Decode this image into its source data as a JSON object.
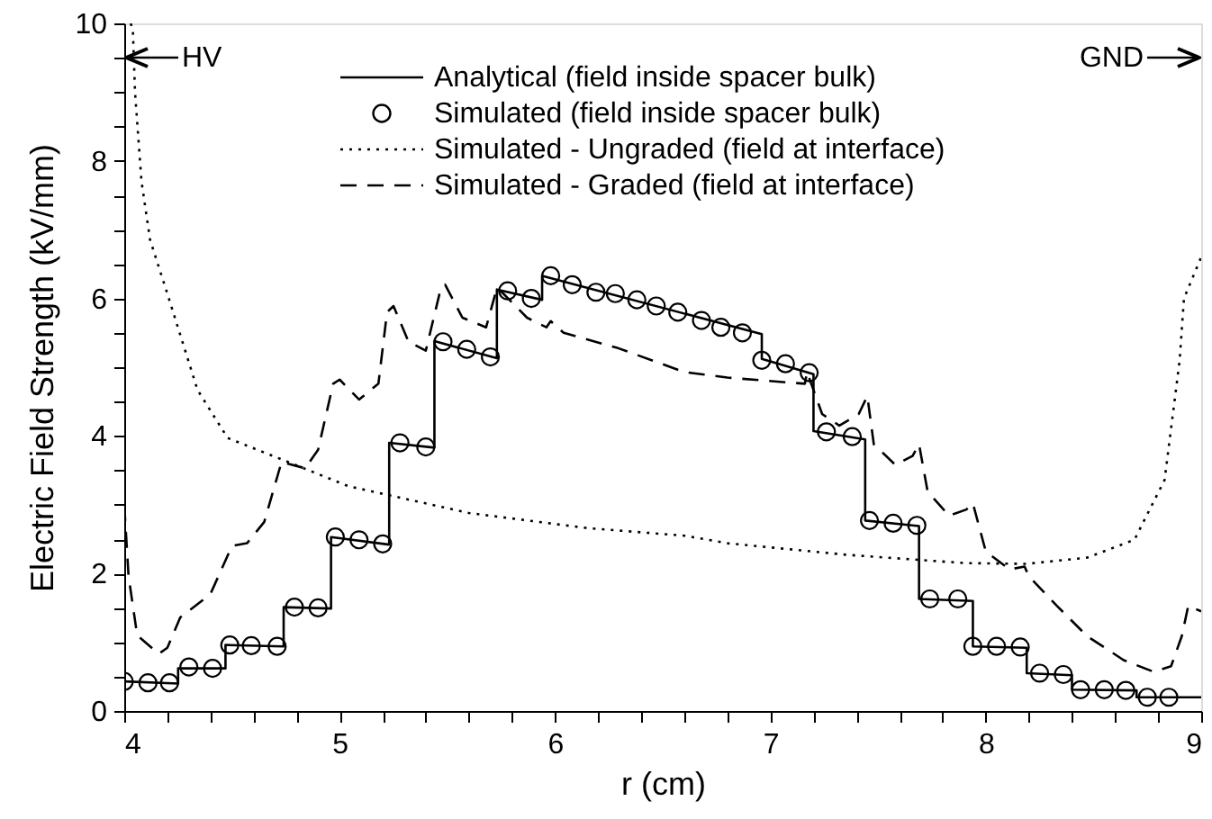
{
  "chart_data": {
    "type": "line",
    "xlabel": "r (cm)",
    "ylabel": "Electric Field Strength (kV/mm)",
    "xlim": [
      4,
      9
    ],
    "ylim": [
      0,
      10
    ],
    "xticks": [
      4,
      {
        "value": 4.2,
        "label": null
      },
      {
        "value": 4.4,
        "label": null
      },
      {
        "value": 4.6,
        "label": null
      },
      {
        "value": 4.8,
        "label": null
      },
      5,
      {
        "value": 5.2,
        "label": null
      },
      {
        "value": 5.4,
        "label": null
      },
      {
        "value": 5.6,
        "label": null
      },
      {
        "value": 5.8,
        "label": null
      },
      6,
      {
        "value": 6.2,
        "label": null
      },
      {
        "value": 6.4,
        "label": null
      },
      {
        "value": 6.6,
        "label": null
      },
      {
        "value": 6.8,
        "label": null
      },
      7,
      {
        "value": 7.2,
        "label": null
      },
      {
        "value": 7.4,
        "label": null
      },
      {
        "value": 7.6,
        "label": null
      },
      {
        "value": 7.8,
        "label": null
      },
      8,
      {
        "value": 8.2,
        "label": null
      },
      {
        "value": 8.4,
        "label": null
      },
      {
        "value": 8.6,
        "label": null
      },
      {
        "value": 8.8,
        "label": null
      },
      9
    ],
    "yticks": [
      0,
      {
        "value": 0.5,
        "label": null
      },
      {
        "value": 1,
        "label": null
      },
      {
        "value": 1.5,
        "label": null
      },
      2,
      {
        "value": 2.5,
        "label": null
      },
      {
        "value": 3,
        "label": null
      },
      {
        "value": 3.5,
        "label": null
      },
      4,
      {
        "value": 4.5,
        "label": null
      },
      {
        "value": 5,
        "label": null
      },
      {
        "value": 5.5,
        "label": null
      },
      6,
      {
        "value": 6.5,
        "label": null
      },
      {
        "value": 7,
        "label": null
      },
      {
        "value": 7.5,
        "label": null
      },
      8,
      {
        "value": 8.5,
        "label": null
      },
      {
        "value": 9,
        "label": null
      },
      {
        "value": 9.5,
        "label": null
      },
      10
    ],
    "grid": false,
    "legend": "top",
    "series": [
      {
        "name": "Analytical (field inside spacer bulk)",
        "line_style": "solid",
        "color": "#000000",
        "x": [
          4,
          4.25,
          4.25,
          4.47,
          4.47,
          4.74,
          4.74,
          4.96,
          4.96,
          5.23,
          5.23,
          5.44,
          5.44,
          5.73,
          5.73,
          5.94,
          5.94,
          6.96,
          6.96,
          7.2,
          7.2,
          7.44,
          7.44,
          7.69,
          7.69,
          7.94,
          7.94,
          8.19,
          8.19,
          8.4,
          8.4,
          8.7,
          8.7,
          9
        ],
        "values": [
          0.43,
          0.4,
          0.62,
          0.62,
          0.96,
          0.94,
          1.51,
          1.49,
          2.53,
          2.42,
          3.9,
          3.83,
          5.38,
          5.13,
          6.13,
          5.98,
          6.33,
          5.48,
          5.12,
          4.9,
          4.07,
          3.95,
          2.77,
          2.69,
          1.63,
          1.6,
          0.94,
          0.92,
          0.55,
          0.52,
          0.31,
          0.3,
          0.2,
          0.2
        ]
      },
      {
        "name": "Simulated (field inside spacer bulk)",
        "type": "scatter",
        "marker": "circle",
        "color": "#000000",
        "x": [
          4.0,
          4.11,
          4.21,
          4.3,
          4.41,
          4.49,
          4.59,
          4.71,
          4.79,
          4.9,
          4.98,
          5.09,
          5.2,
          5.28,
          5.4,
          5.48,
          5.59,
          5.7,
          5.78,
          5.89,
          5.98,
          6.08,
          6.19,
          6.28,
          6.38,
          6.47,
          6.57,
          6.68,
          6.77,
          6.87,
          6.96,
          7.07,
          7.18,
          7.26,
          7.38,
          7.46,
          7.57,
          7.68,
          7.74,
          7.87,
          7.94,
          8.05,
          8.16,
          8.25,
          8.36,
          8.44,
          8.55,
          8.65,
          8.75,
          8.85
        ],
        "values": [
          0.43,
          0.41,
          0.41,
          0.64,
          0.62,
          0.96,
          0.95,
          0.94,
          1.51,
          1.5,
          2.53,
          2.49,
          2.43,
          3.9,
          3.84,
          5.37,
          5.26,
          5.15,
          6.11,
          6.0,
          6.33,
          6.2,
          6.09,
          6.07,
          5.98,
          5.89,
          5.8,
          5.68,
          5.58,
          5.5,
          5.1,
          5.05,
          4.92,
          4.06,
          3.99,
          2.77,
          2.73,
          2.7,
          1.63,
          1.63,
          0.94,
          0.94,
          0.93,
          0.55,
          0.53,
          0.31,
          0.31,
          0.3,
          0.2,
          0.2
        ]
      },
      {
        "name": "Simulated - Ungraded (field at interface)",
        "line_style": "dotted",
        "color": "#000000",
        "x": [
          4.03,
          4.04,
          4.05,
          4.08,
          4.12,
          4.2,
          4.34,
          4.48,
          4.73,
          5.04,
          5.6,
          6.15,
          6.6,
          6.8,
          7.36,
          7.91,
          8.19,
          8.47,
          8.69,
          8.83,
          8.9,
          8.92,
          9.0
        ],
        "values": [
          10,
          9.9,
          9.0,
          7.7,
          6.85,
          6.07,
          4.67,
          3.97,
          3.66,
          3.27,
          2.88,
          2.66,
          2.55,
          2.44,
          2.27,
          2.15,
          2.14,
          2.23,
          2.49,
          3.36,
          5.1,
          6.0,
          6.6
        ]
      },
      {
        "name": "Simulated - Graded (field at interface)",
        "line_style": "dashed",
        "color": "#000000",
        "x": [
          4.0,
          4.02,
          4.06,
          4.16,
          4.2,
          4.26,
          4.4,
          4.5,
          4.57,
          4.65,
          4.73,
          4.84,
          4.9,
          4.97,
          5.0,
          5.09,
          5.18,
          5.22,
          5.25,
          5.32,
          5.4,
          5.47,
          5.49,
          5.57,
          5.68,
          5.73,
          5.76,
          5.87,
          5.96,
          5.98,
          6.04,
          6.29,
          6.6,
          6.8,
          7.07,
          7.16,
          7.17,
          7.24,
          7.32,
          7.41,
          7.45,
          7.48,
          7.58,
          7.66,
          7.69,
          7.73,
          7.83,
          7.91,
          7.94,
          8.0,
          8.11,
          8.18,
          8.2,
          8.33,
          8.47,
          8.64,
          8.78,
          8.86,
          8.91,
          8.94,
          9.0
        ],
        "values": [
          3.0,
          1.96,
          1.1,
          0.83,
          0.92,
          1.36,
          1.7,
          2.4,
          2.44,
          2.75,
          3.62,
          3.53,
          3.8,
          4.76,
          4.82,
          4.53,
          4.76,
          5.8,
          5.89,
          5.37,
          5.24,
          6.15,
          6.2,
          5.72,
          5.58,
          6.15,
          6.07,
          5.72,
          5.58,
          5.67,
          5.5,
          5.28,
          4.93,
          4.85,
          4.78,
          4.76,
          4.93,
          4.32,
          4.15,
          4.32,
          4.58,
          3.88,
          3.58,
          3.71,
          3.88,
          3.19,
          2.84,
          2.93,
          3.02,
          2.32,
          2.06,
          2.1,
          1.96,
          1.53,
          1.09,
          0.74,
          0.57,
          0.65,
          1.09,
          1.53,
          1.45
        ]
      }
    ],
    "annotations": [
      "HV",
      "GND"
    ]
  }
}
